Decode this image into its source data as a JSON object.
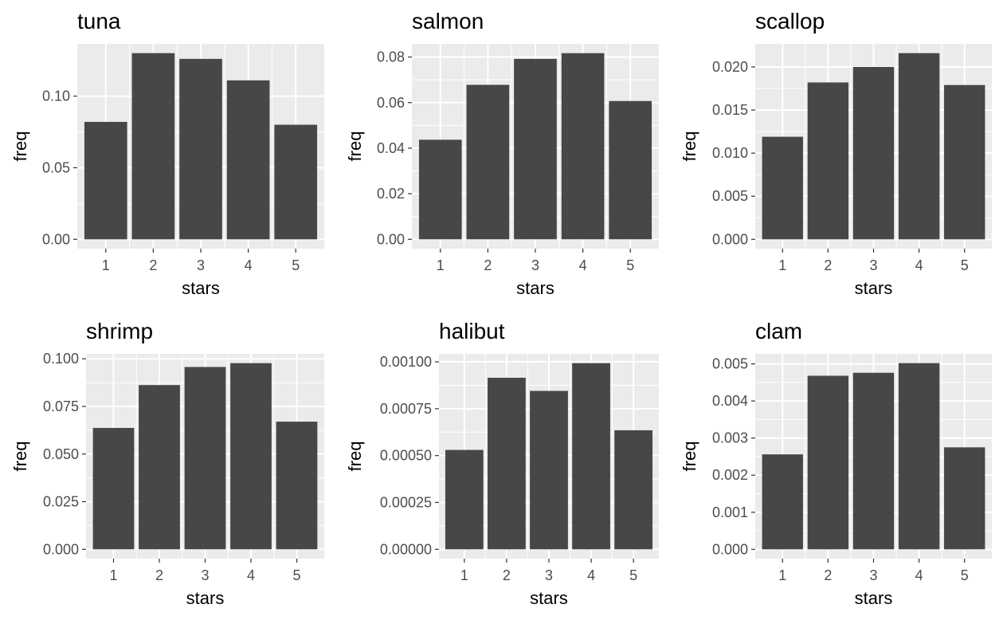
{
  "chart_data": [
    {
      "type": "bar",
      "title": "tuna",
      "xlabel": "stars",
      "ylabel": "freq",
      "categories": [
        "1",
        "2",
        "3",
        "4",
        "5"
      ],
      "values": [
        0.082,
        0.13,
        0.126,
        0.111,
        0.08
      ],
      "ylim": [
        -0.0065,
        0.1365
      ],
      "yticks": [
        0.0,
        0.05,
        0.1
      ],
      "ytick_labels": [
        "0.00",
        "0.05",
        "0.10"
      ],
      "grid": true
    },
    {
      "type": "bar",
      "title": "salmon",
      "xlabel": "stars",
      "ylabel": "freq",
      "categories": [
        "1",
        "2",
        "3",
        "4",
        "5"
      ],
      "values": [
        0.0437,
        0.0678,
        0.0792,
        0.0817,
        0.0607
      ],
      "ylim": [
        -0.0041,
        0.0858
      ],
      "yticks": [
        0.0,
        0.02,
        0.04,
        0.06,
        0.08
      ],
      "ytick_labels": [
        "0.00",
        "0.02",
        "0.04",
        "0.06",
        "0.08"
      ],
      "grid": true
    },
    {
      "type": "bar",
      "title": "scallop",
      "xlabel": "stars",
      "ylabel": "freq",
      "categories": [
        "1",
        "2",
        "3",
        "4",
        "5"
      ],
      "values": [
        0.0119,
        0.0182,
        0.02,
        0.0216,
        0.0179
      ],
      "ylim": [
        -0.00108,
        0.02268
      ],
      "yticks": [
        0.0,
        0.005,
        0.01,
        0.015,
        0.02
      ],
      "ytick_labels": [
        "0.000",
        "0.005",
        "0.010",
        "0.015",
        "0.020"
      ],
      "grid": true
    },
    {
      "type": "bar",
      "title": "shrimp",
      "xlabel": "stars",
      "ylabel": "freq",
      "categories": [
        "1",
        "2",
        "3",
        "4",
        "5"
      ],
      "values": [
        0.0637,
        0.0862,
        0.0957,
        0.0977,
        0.067
      ],
      "ylim": [
        -0.0049,
        0.1026
      ],
      "yticks": [
        0.0,
        0.025,
        0.05,
        0.075,
        0.1
      ],
      "ytick_labels": [
        "0.000",
        "0.025",
        "0.050",
        "0.075",
        "0.100"
      ],
      "grid": true
    },
    {
      "type": "bar",
      "title": "halibut",
      "xlabel": "stars",
      "ylabel": "freq",
      "categories": [
        "1",
        "2",
        "3",
        "4",
        "5"
      ],
      "values": [
        0.00053,
        0.000915,
        0.000845,
        0.000993,
        0.000635
      ],
      "ylim": [
        -4.97e-05,
        0.0010427
      ],
      "yticks": [
        0.0,
        0.00025,
        0.0005,
        0.00075,
        0.001
      ],
      "ytick_labels": [
        "0.00000",
        "0.00025",
        "0.00050",
        "0.00075",
        "0.00100"
      ],
      "grid": true
    },
    {
      "type": "bar",
      "title": "clam",
      "xlabel": "stars",
      "ylabel": "freq",
      "categories": [
        "1",
        "2",
        "3",
        "4",
        "5"
      ],
      "values": [
        0.00256,
        0.00468,
        0.00476,
        0.00502,
        0.00275
      ],
      "ylim": [
        -0.000251,
        0.005271
      ],
      "yticks": [
        0.0,
        0.001,
        0.002,
        0.003,
        0.004,
        0.005
      ],
      "ytick_labels": [
        "0.000",
        "0.001",
        "0.002",
        "0.003",
        "0.004",
        "0.005"
      ],
      "grid": true
    }
  ],
  "colors": {
    "panel_background": "#ebebeb",
    "grid_line": "#ffffff",
    "bar_fill": "#474747",
    "tick_mark": "#333333",
    "tick_label": "#4d4d4d",
    "text": "#000000"
  }
}
